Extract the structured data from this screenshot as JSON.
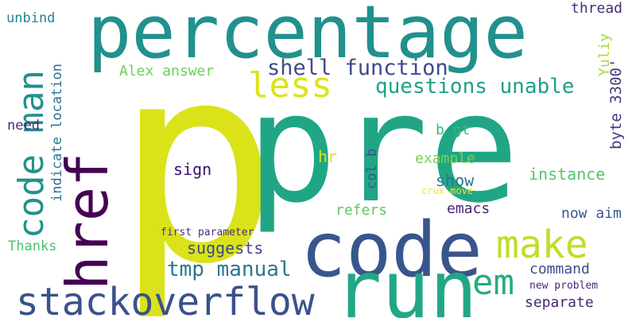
{
  "words": [
    {
      "text": "p",
      "color": "#dae319"
    },
    {
      "text": "pre",
      "color": "#21a685"
    },
    {
      "text": "percentage",
      "color": "#21918d"
    },
    {
      "text": "code",
      "color": "#39568c"
    },
    {
      "text": "run",
      "color": "#22a785"
    },
    {
      "text": "href",
      "color": "#440154"
    },
    {
      "text": "stackoverflow",
      "color": "#3b518b"
    },
    {
      "text": "code man",
      "color": "#21918c"
    },
    {
      "text": "make",
      "color": "#bddf26"
    },
    {
      "text": "less",
      "color": "#dde318"
    },
    {
      "text": "em",
      "color": "#25ab82"
    },
    {
      "text": "shell function",
      "color": "#3e4a89"
    },
    {
      "text": "questions unable",
      "color": "#1fa088"
    },
    {
      "text": "tmp manual",
      "color": "#2a788e"
    },
    {
      "text": "suggests",
      "color": "#3f4788"
    },
    {
      "text": "separate",
      "color": "#482878"
    },
    {
      "text": "command",
      "color": "#3e4c8a"
    },
    {
      "text": "byte 3300'",
      "color": "#443983"
    },
    {
      "text": "Yuliy",
      "color": "#a5db36"
    },
    {
      "text": "thread",
      "color": "#472c7a"
    },
    {
      "text": "Alex answer",
      "color": "#6ece58"
    },
    {
      "text": "unbind",
      "color": "#26828e"
    },
    {
      "text": "need",
      "color": "#472d7b"
    },
    {
      "text": "indicate location",
      "color": "#2c738e"
    },
    {
      "text": "Thanks",
      "color": "#4ac16d"
    },
    {
      "text": "first parameter",
      "color": "#472f7d"
    },
    {
      "text": "sign",
      "color": "#3b0f70"
    },
    {
      "text": "hr",
      "color": "#dde318"
    },
    {
      "text": "col b",
      "color": "#3b528b"
    },
    {
      "text": "b gt",
      "color": "#35b779"
    },
    {
      "text": "example",
      "color": "#7ad151"
    },
    {
      "text": "show",
      "color": "#2a788e"
    },
    {
      "text": "instance",
      "color": "#54c568"
    },
    {
      "text": "crux move",
      "color": "#f4e61e"
    },
    {
      "text": "refers",
      "color": "#5ec962"
    },
    {
      "text": "emacs",
      "color": "#482475"
    },
    {
      "text": "now aim",
      "color": "#38598c"
    },
    {
      "text": "new problem",
      "color": "#482979"
    }
  ]
}
